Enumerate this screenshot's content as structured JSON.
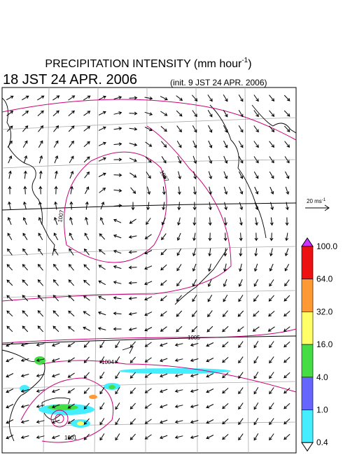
{
  "header": {
    "title": "PRECIPITATION INTENSITY (mm hour",
    "title_sup": "-1",
    "title_end": ")",
    "valid_time": "18 JST 24 APR. 2006",
    "init_time": "(init. 9 JST 24 APR. 2006)"
  },
  "reference_vector": {
    "label": "20 ms",
    "label_sup": "-1"
  },
  "colorbar": {
    "labels": [
      "100.0",
      "64.0",
      "32.0",
      "16.0",
      "4.0",
      "1.0",
      "0.4"
    ],
    "colors": [
      "#cc33ff",
      "#ee1111",
      "#ff9933",
      "#ffff66",
      "#44dd44",
      "#6666ff",
      "#44eeff",
      "#ffffff"
    ]
  },
  "contour_labels": [
    "1007",
    "1007",
    "1005",
    "1004",
    "1001"
  ]
}
